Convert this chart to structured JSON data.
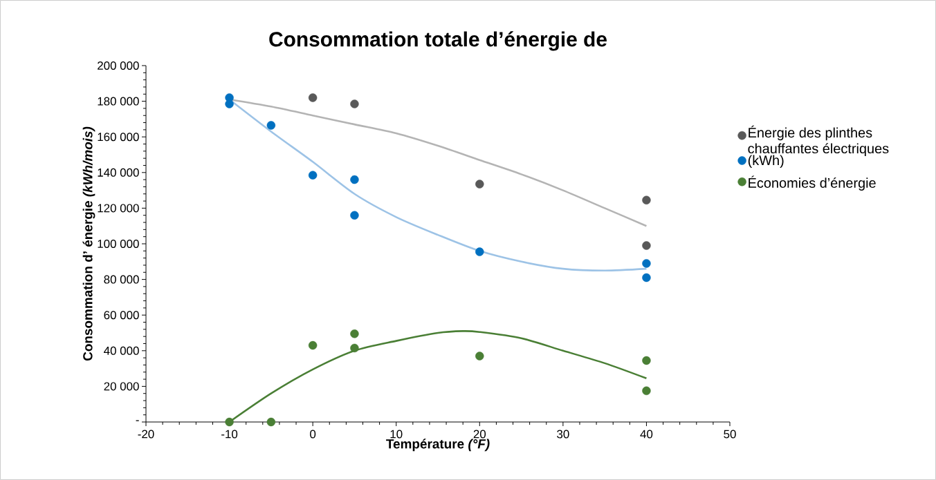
{
  "chart_data": {
    "type": "scatter",
    "title": "Consommation totale d’énergie de",
    "xlabel": "Température *(°F)*",
    "ylabel": "Consommation d’   énergie *(kWh/mois)*",
    "xlim": [
      -20,
      50
    ],
    "xticks": [
      -20,
      -10,
      0,
      10,
      20,
      30,
      40,
      50
    ],
    "ylim": [
      0,
      200000
    ],
    "yticks": [
      {
        "value": 0,
        "label": "-"
      },
      {
        "value": 20000,
        "label": "20 000"
      },
      {
        "value": 40000,
        "label": "40 000"
      },
      {
        "value": 60000,
        "label": "60 000"
      },
      {
        "value": 80000,
        "label": "80 000"
      },
      {
        "value": 100000,
        "label": "100 000"
      },
      {
        "value": 120000,
        "label": "120 000"
      },
      {
        "value": 140000,
        "label": "140 000"
      },
      {
        "value": 160000,
        "label": "160 000"
      },
      {
        "value": 180000,
        "label": "180 000"
      },
      {
        "value": 200000,
        "label": "200 000"
      }
    ],
    "grid": false,
    "legend": "right",
    "marker": "circle",
    "series": [
      {
        "type": "line",
        "marker": "none",
        "color": "#b4b4b4",
        "x": [
          -10,
          -5,
          0,
          5,
          10,
          15,
          20,
          25,
          30,
          35,
          40
        ],
        "values": [
          181000,
          177000,
          172000,
          167000,
          162000,
          155000,
          147000,
          139000,
          130000,
          120000,
          110000
        ]
      },
      {
        "type": "line",
        "marker": "none",
        "color": "#9dc3e6",
        "x": [
          -10,
          -5,
          0,
          5,
          10,
          15,
          20,
          25,
          30,
          35,
          40
        ],
        "values": [
          181000,
          163000,
          146000,
          128000,
          115000,
          105000,
          96000,
          90000,
          86000,
          85000,
          86000
        ]
      },
      {
        "type": "line",
        "marker": "none",
        "color": "#4a7f35",
        "x": [
          -10,
          -5,
          0,
          5,
          10,
          15,
          18,
          20,
          25,
          30,
          35,
          40
        ],
        "values": [
          0,
          16000,
          29500,
          40000,
          45500,
          50000,
          51000,
          50500,
          47000,
          40000,
          33000,
          24500
        ]
      },
      {
        "name": "Énergie des plinthes chauffantes électriques",
        "color": "#595959",
        "x": [
          0,
          5,
          20,
          40,
          40
        ],
        "values": [
          182000,
          178500,
          133500,
          124500,
          99000
        ]
      },
      {
        "name": "(kWh)",
        "color": "#0070c0",
        "x": [
          -10,
          -10,
          -5,
          0,
          5,
          5,
          20,
          40,
          40
        ],
        "values": [
          182000,
          178500,
          166500,
          138500,
          136000,
          116000,
          95500,
          89000,
          81000
        ]
      },
      {
        "name": "Économies d’énergie",
        "color": "#4a7f35",
        "x": [
          -10,
          -5,
          0,
          5,
          5,
          20,
          40,
          40
        ],
        "values": [
          0,
          0,
          43000,
          49500,
          41500,
          37000,
          34500,
          17500
        ]
      }
    ]
  }
}
